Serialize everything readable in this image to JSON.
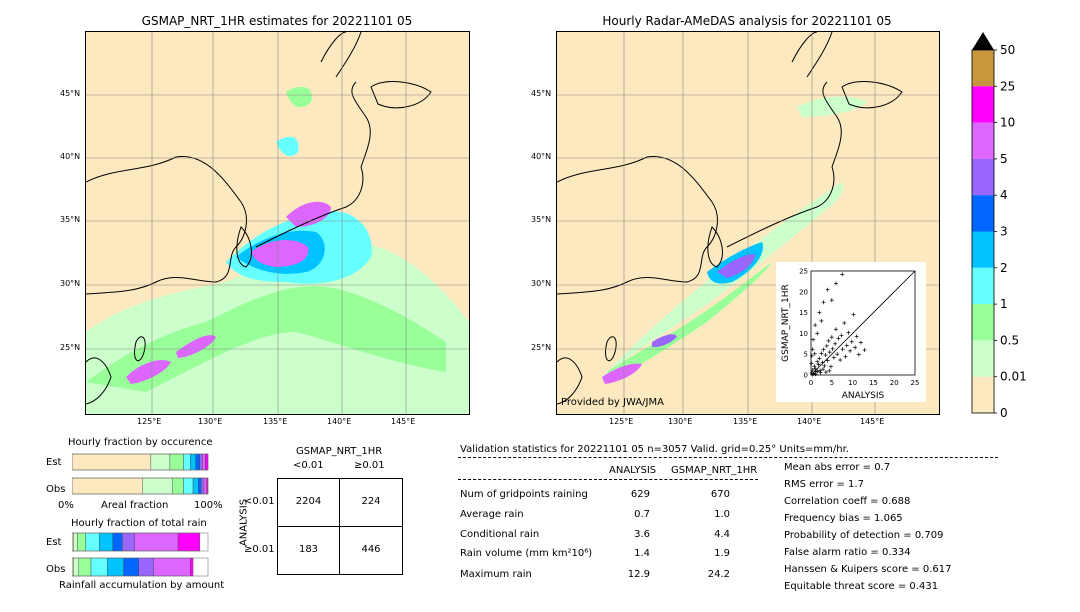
{
  "left_map": {
    "title": "GSMAP_NRT_1HR estimates for 20221101 05",
    "lat_labels": [
      "45°N",
      "40°N",
      "35°N",
      "30°N",
      "25°N"
    ],
    "lon_labels": [
      "125°E",
      "130°E",
      "135°E",
      "140°E",
      "145°E"
    ]
  },
  "right_map": {
    "title": "Hourly Radar-AMeDAS analysis for 20221101 05",
    "lat_labels": [
      "45°N",
      "40°N",
      "35°N",
      "30°N",
      "25°N"
    ],
    "lon_labels": [
      "125°E",
      "130°E",
      "135°E",
      "140°E",
      "145°E"
    ],
    "credit": "Provided by JWA/JMA"
  },
  "scatter": {
    "xlabel": "ANALYSIS",
    "ylabel": "GSMAP_NRT_1HR",
    "ticks": [
      "0",
      "5",
      "10",
      "15",
      "20",
      "25"
    ]
  },
  "colorbar": {
    "labels": [
      "50",
      "25",
      "10",
      "5",
      "4",
      "3",
      "2",
      "1",
      "0.5",
      "0.01",
      "0"
    ],
    "colors": [
      "#c8963c",
      "#ff00ff",
      "#dd66ff",
      "#9966ff",
      "#0066ff",
      "#00c3ff",
      "#66ffff",
      "#99ff99",
      "#ccffcc",
      "#fde9bf"
    ]
  },
  "occurrence": {
    "title": "Hourly fraction by occurence",
    "row_labels": [
      "Est",
      "Obs"
    ],
    "axis_left": "0%",
    "axis_mid": "Areal fraction",
    "axis_right": "100%"
  },
  "total_rain": {
    "title": "Hourly fraction of total rain",
    "row_labels": [
      "Est",
      "Obs"
    ],
    "caption": "Rainfall accumulation by amount"
  },
  "contingency": {
    "title": "GSMAP_NRT_1HR",
    "col_labels": [
      "<0.01",
      "≥0.01"
    ],
    "row_axis": "ANALYSIS",
    "row_labels": [
      "<0.01",
      "≥0.01"
    ],
    "cells": [
      [
        "2204",
        "224"
      ],
      [
        "183",
        "446"
      ]
    ]
  },
  "validation": {
    "header": "Validation statistics for 20221101 05  n=3057 Valid. grid=0.25° Units=mm/hr.",
    "col_analysis": "ANALYSIS",
    "col_gsmap": "GSMAP_NRT_1HR",
    "rows": [
      {
        "label": "Num of gridpoints raining",
        "analysis": "629",
        "gsmap": "670"
      },
      {
        "label": "Average rain",
        "analysis": "0.7",
        "gsmap": "1.0"
      },
      {
        "label": "Conditional rain",
        "analysis": "3.6",
        "gsmap": "4.4"
      },
      {
        "label": "Rain volume (mm km²10⁶)",
        "analysis": "1.4",
        "gsmap": "1.9"
      },
      {
        "label": "Maximum rain",
        "analysis": "12.9",
        "gsmap": "24.2"
      }
    ],
    "scores": [
      "Mean abs error =    0.7",
      "RMS error =    1.7",
      "Correlation coeff =  0.688",
      "Frequency bias =  1.065",
      "Probability of detection =  0.709",
      "False alarm ratio =  0.334",
      "Hanssen & Kuipers score =  0.617",
      "Equitable threat score =  0.431"
    ]
  },
  "chart_data": [
    {
      "type": "bar",
      "title": "Hourly fraction by occurence",
      "categories": [
        "Est",
        "Obs"
      ],
      "series": [
        {
          "values": [
            0.58,
            0.52
          ],
          "color": "#fde9bf"
        },
        {
          "values": [
            0.14,
            0.22
          ],
          "color": "#ccffcc"
        },
        {
          "values": [
            0.1,
            0.08
          ],
          "color": "#99ff99"
        },
        {
          "values": [
            0.05,
            0.07
          ],
          "color": "#66ffff"
        },
        {
          "values": [
            0.04,
            0.04
          ],
          "color": "#00c3ff"
        },
        {
          "values": [
            0.03,
            0.02
          ],
          "color": "#0066ff"
        },
        {
          "values": [
            0.02,
            0.02
          ],
          "color": "#9966ff"
        },
        {
          "values": [
            0.02,
            0.02
          ],
          "color": "#dd66ff"
        },
        {
          "values": [
            0.02,
            0.01
          ],
          "color": "#ff00ff"
        }
      ],
      "xlabel": "Areal fraction"
    },
    {
      "type": "bar",
      "title": "Hourly fraction of total rain",
      "categories": [
        "Est",
        "Obs"
      ],
      "series": [
        {
          "values": [
            0.01,
            0.01
          ],
          "color": "#fde9bf"
        },
        {
          "values": [
            0.03,
            0.04
          ],
          "color": "#ccffcc"
        },
        {
          "values": [
            0.06,
            0.09
          ],
          "color": "#99ff99"
        },
        {
          "values": [
            0.1,
            0.12
          ],
          "color": "#66ffff"
        },
        {
          "values": [
            0.1,
            0.12
          ],
          "color": "#00c3ff"
        },
        {
          "values": [
            0.07,
            0.11
          ],
          "color": "#0066ff"
        },
        {
          "values": [
            0.09,
            0.11
          ],
          "color": "#9966ff"
        },
        {
          "values": [
            0.32,
            0.27
          ],
          "color": "#dd66ff"
        },
        {
          "values": [
            0.16,
            0.02
          ],
          "color": "#ff00ff"
        }
      ]
    },
    {
      "type": "scatter",
      "xlabel": "ANALYSIS",
      "ylabel": "GSMAP_NRT_1HR",
      "xlim": [
        0,
        25
      ],
      "ylim": [
        0,
        25
      ],
      "points": [
        [
          0.2,
          0.5
        ],
        [
          0.4,
          1.2
        ],
        [
          0.6,
          0.3
        ],
        [
          0.8,
          2.1
        ],
        [
          1.0,
          1.5
        ],
        [
          1.2,
          0.8
        ],
        [
          1.5,
          3.2
        ],
        [
          1.8,
          2.5
        ],
        [
          2.0,
          4.0
        ],
        [
          2.2,
          1.1
        ],
        [
          2.5,
          5.2
        ],
        [
          2.8,
          3.0
        ],
        [
          3.0,
          6.1
        ],
        [
          3.2,
          2.2
        ],
        [
          3.5,
          4.8
        ],
        [
          3.8,
          7.0
        ],
        [
          4.0,
          3.5
        ],
        [
          4.2,
          8.2
        ],
        [
          4.5,
          5.5
        ],
        [
          4.8,
          2.0
        ],
        [
          5.0,
          9.1
        ],
        [
          5.2,
          6.3
        ],
        [
          5.5,
          4.2
        ],
        [
          5.8,
          7.5
        ],
        [
          6.0,
          11.0
        ],
        [
          6.3,
          5.0
        ],
        [
          6.6,
          8.8
        ],
        [
          7.0,
          3.6
        ],
        [
          7.3,
          9.5
        ],
        [
          7.6,
          6.2
        ],
        [
          8.0,
          12.5
        ],
        [
          8.3,
          4.4
        ],
        [
          8.6,
          7.1
        ],
        [
          9.0,
          10.2
        ],
        [
          9.4,
          5.8
        ],
        [
          9.8,
          8.0
        ],
        [
          10.2,
          14.5
        ],
        [
          10.6,
          6.6
        ],
        [
          11.0,
          9.3
        ],
        [
          11.5,
          4.9
        ],
        [
          12.0,
          7.8
        ],
        [
          12.9,
          6.0
        ],
        [
          1.0,
          12.0
        ],
        [
          2.0,
          15.0
        ],
        [
          3.0,
          17.5
        ],
        [
          4.0,
          20.5
        ],
        [
          5.0,
          18.0
        ],
        [
          6.0,
          22.0
        ],
        [
          7.5,
          24.2
        ],
        [
          0.5,
          8.5
        ],
        [
          1.5,
          10.0
        ],
        [
          2.5,
          13.0
        ],
        [
          0.3,
          0.1
        ],
        [
          0.7,
          0.4
        ],
        [
          1.1,
          0.2
        ],
        [
          1.6,
          0.9
        ],
        [
          2.3,
          0.6
        ],
        [
          2.9,
          1.4
        ],
        [
          3.6,
          0.7
        ],
        [
          4.4,
          1.0
        ],
        [
          0.1,
          2.8
        ],
        [
          0.2,
          4.6
        ],
        [
          0.4,
          6.2
        ],
        [
          0.9,
          5.1
        ]
      ]
    }
  ]
}
